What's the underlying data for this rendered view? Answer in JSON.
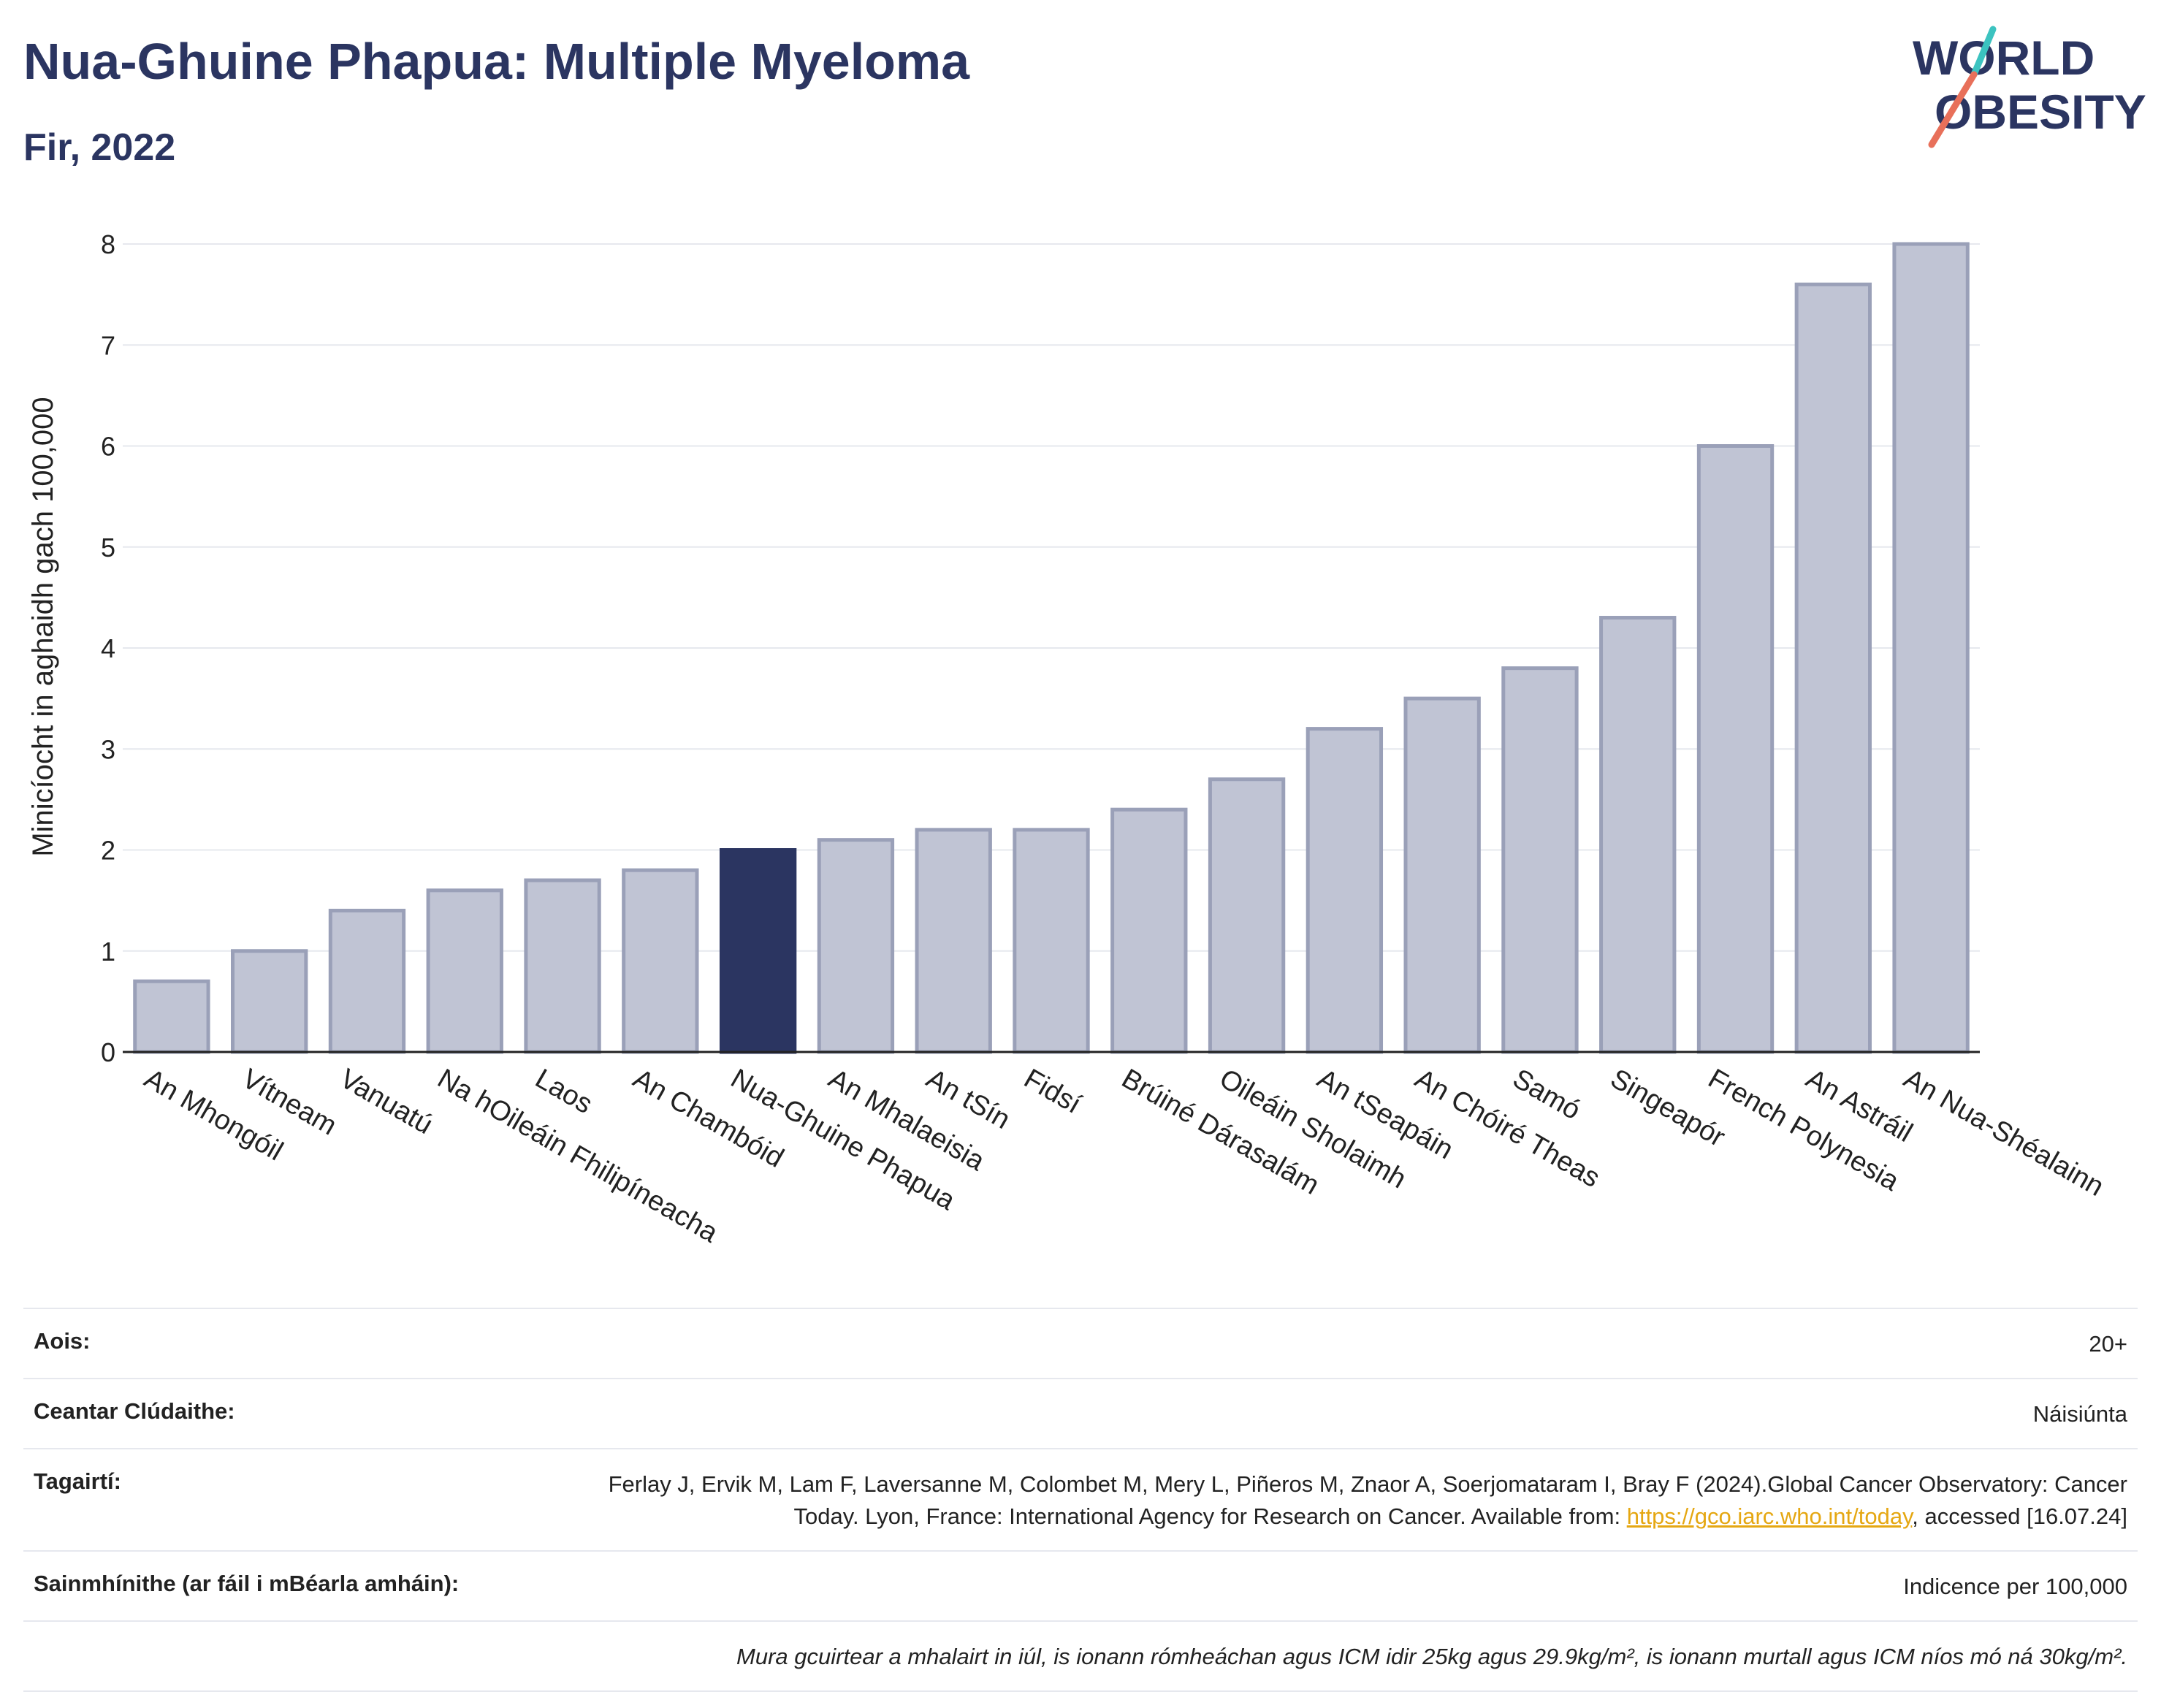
{
  "header": {
    "title": "Nua-Ghuine Phapua: Multiple Myeloma",
    "subtitle": "Fir, 2022"
  },
  "logo": {
    "line1": "WORLD",
    "line2": "OBESITY",
    "colors": [
      "#2b3561",
      "#e8705a",
      "#3cc3c0"
    ]
  },
  "chart_data": {
    "type": "bar",
    "ylabel": "Minicíocht in aghaidh gach 100,000",
    "xlabel": "",
    "ylim": [
      0,
      8
    ],
    "yticks": [
      0,
      1,
      2,
      3,
      4,
      5,
      6,
      7,
      8
    ],
    "grid": true,
    "categories": [
      "An Mhongóil",
      "Vítneam",
      "Vanuatú",
      "Na hOileáin Fhilipíneacha",
      "Laos",
      "An Chambóid",
      "Nua-Ghuine Phapua",
      "An Mhalaeisia",
      "An tSín",
      "Fidsí",
      "Brúiné Dárasalám",
      "Oileáin Sholaimh",
      "An tSeapáin",
      "An Chóiré Theas",
      "Samó",
      "Singeapór",
      "French Polynesia",
      "An Astráil",
      "An Nua-Shéalainn"
    ],
    "values": [
      0.7,
      1.0,
      1.4,
      1.6,
      1.7,
      1.8,
      2.0,
      2.1,
      2.2,
      2.2,
      2.4,
      2.7,
      3.2,
      3.5,
      3.8,
      4.3,
      6.0,
      7.6,
      8.0
    ],
    "highlight_index": 6,
    "colors": {
      "bar": "#c0c4d4",
      "bar_border": "#9aa0b8",
      "highlight": "#2b3561",
      "grid": "#e6e8ee",
      "axis": "#222222"
    }
  },
  "meta": {
    "age_label": "Aois:",
    "age_value": "20+",
    "area_label": "Ceantar Clúdaithe:",
    "area_value": "Náisiúnta",
    "ref_label": "Tagairtí:",
    "ref_text_1": "Ferlay J, Ervik M, Lam F, Laversanne M, Colombet M, Mery L, Piñeros M, Znaor A, Soerjomataram I, Bray F (2024).Global Cancer Observatory: Cancer Today. Lyon, France: International Agency for Research on Cancer. Available from: ",
    "ref_link": "https://gco.iarc.who.int/today",
    "ref_text_2": ", accessed [16.07.24]",
    "def_label": "Sainmhínithe (ar fáil i mBéarla amháin):",
    "def_value": "Indicence per 100,000",
    "note": "Mura gcuirtear a mhalairt in iúl, is ionann rómheáchan agus ICM idir 25kg agus 29.9kg/m², is ionann murtall agus ICM níos mó ná 30kg/m²."
  }
}
